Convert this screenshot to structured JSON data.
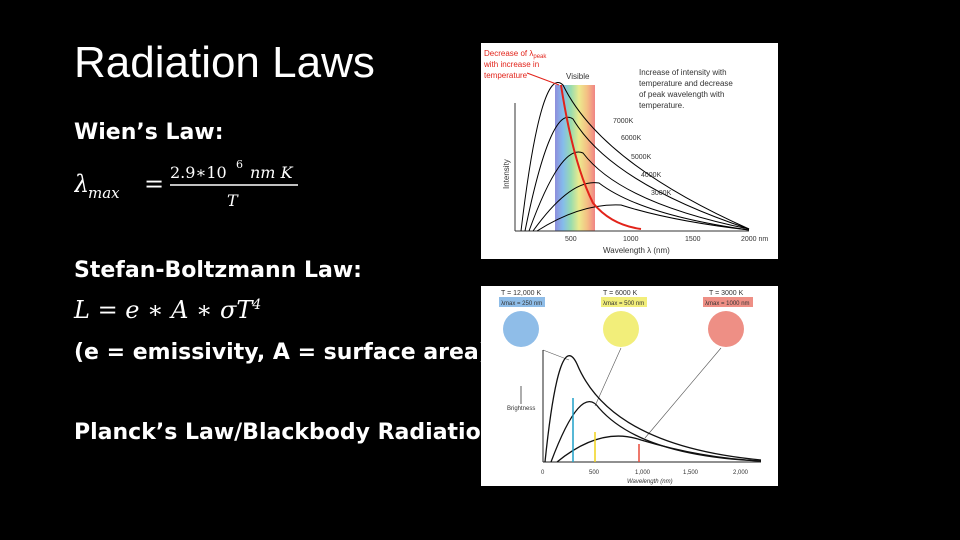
{
  "title": "Radiation Laws",
  "wien": {
    "heading": "Wien’s Law:",
    "lhs": "λ",
    "lhs_sub": "max",
    "eq": "=",
    "num": "2.9∗10",
    "num_exp": "6",
    "num_unit": "nm K",
    "den": "T"
  },
  "stefan": {
    "heading": "Stefan-Boltzmann Law:",
    "formula": "L = e ∗ A ∗ σT",
    "formula_exp": "4",
    "note": "(e = emissivity, A = surface area)"
  },
  "planck": {
    "heading": "Planck’s Law/Blackbody Radiation"
  },
  "wien_figure": {
    "annot_left_1": "Decrease of λ",
    "annot_left_1_sub": "peak",
    "annot_left_2": "with increase in",
    "annot_left_3": "temperature",
    "annot_visible": "Visible",
    "annot_right": [
      "Increase of intensity with",
      "temperature and decrease",
      "of peak wavelength with",
      "temperature."
    ],
    "ylabel": "Intensity",
    "xlabel": "Wavelength λ (nm)",
    "curve_labels": [
      "7000K",
      "6000K",
      "5000K",
      "4000K",
      "3000K"
    ],
    "xticks": [
      "500",
      "1000",
      "1500",
      "2000 nm"
    ]
  },
  "planck_figure": {
    "temps": [
      "T = 12,000 K",
      "T = 6000 K",
      "T = 3000 K"
    ],
    "peaks": [
      "λmax = 250 nm",
      "λmax = 500 nm",
      "λmax = 1000 nm"
    ],
    "ylabel": "Brightness",
    "xlabel": "Wavelength (nm)",
    "xticks": [
      "0",
      "500",
      "1,000",
      "1,500",
      "2,000"
    ],
    "circle_colors": [
      "#8fbde8",
      "#f2ee7a",
      "#ee8f85"
    ]
  }
}
